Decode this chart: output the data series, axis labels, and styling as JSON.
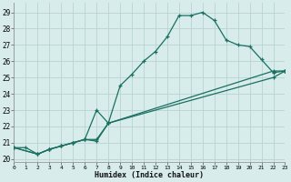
{
  "xlabel": "Humidex (Indice chaleur)",
  "bg_color": "#d8ecec",
  "grid_color": "#b8d4d4",
  "line_color": "#1a7060",
  "xlim": [
    0,
    23
  ],
  "ylim": [
    19.8,
    29.6
  ],
  "xticks": [
    0,
    1,
    2,
    3,
    4,
    5,
    6,
    7,
    8,
    9,
    10,
    11,
    12,
    13,
    14,
    15,
    16,
    17,
    18,
    19,
    20,
    21,
    22,
    23
  ],
  "yticks": [
    20,
    21,
    22,
    23,
    24,
    25,
    26,
    27,
    28,
    29
  ],
  "xtick_labels": [
    "0",
    "1",
    "2",
    "3",
    "4",
    "5",
    "6",
    "7",
    "8",
    "9",
    "10",
    "11",
    "12",
    "13",
    "14",
    "15",
    "16",
    "17",
    "18",
    "19",
    "20",
    "21",
    "22",
    "23"
  ],
  "line1_x": [
    0,
    1,
    2,
    3,
    4,
    5,
    6,
    7,
    8,
    9,
    10,
    11,
    12,
    13,
    14,
    15,
    16,
    17,
    18,
    19,
    20,
    21,
    22,
    23
  ],
  "line1_y": [
    20.7,
    20.7,
    20.3,
    20.6,
    20.8,
    21.0,
    21.2,
    21.1,
    22.2,
    24.5,
    25.2,
    26.0,
    26.6,
    27.5,
    28.8,
    28.8,
    29.0,
    28.5,
    27.3,
    27.0,
    26.9,
    26.1,
    25.3,
    25.4
  ],
  "line2_x": [
    0,
    2,
    3,
    4,
    5,
    6,
    7,
    8,
    22,
    23
  ],
  "line2_y": [
    20.7,
    20.3,
    20.6,
    20.8,
    21.0,
    21.2,
    23.0,
    22.2,
    25.4,
    25.4
  ],
  "line3_x": [
    0,
    2,
    3,
    4,
    5,
    6,
    7,
    8,
    22,
    23
  ],
  "line3_y": [
    20.7,
    20.3,
    20.6,
    20.8,
    21.0,
    21.2,
    21.2,
    22.2,
    25.0,
    25.4
  ]
}
